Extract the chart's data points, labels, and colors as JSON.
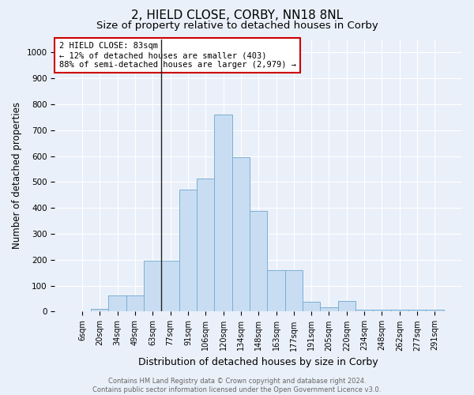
{
  "title": "2, HIELD CLOSE, CORBY, NN18 8NL",
  "subtitle": "Size of property relative to detached houses in Corby",
  "xlabel": "Distribution of detached houses by size in Corby",
  "ylabel": "Number of detached properties",
  "categories": [
    "6sqm",
    "20sqm",
    "34sqm",
    "49sqm",
    "63sqm",
    "77sqm",
    "91sqm",
    "106sqm",
    "120sqm",
    "134sqm",
    "148sqm",
    "163sqm",
    "177sqm",
    "191sqm",
    "205sqm",
    "220sqm",
    "234sqm",
    "248sqm",
    "262sqm",
    "277sqm",
    "291sqm"
  ],
  "values": [
    0,
    10,
    62,
    62,
    195,
    195,
    470,
    515,
    760,
    595,
    390,
    160,
    160,
    37,
    18,
    42,
    8,
    8,
    8,
    8,
    8
  ],
  "bar_color": "#c9ddf2",
  "bar_edge_color": "#7aafd4",
  "ylim": [
    0,
    1050
  ],
  "yticks": [
    0,
    100,
    200,
    300,
    400,
    500,
    600,
    700,
    800,
    900,
    1000
  ],
  "annotation_line1": "2 HIELD CLOSE: 83sqm",
  "annotation_line2": "← 12% of detached houses are smaller (403)",
  "annotation_line3": "88% of semi-detached houses are larger (2,979) →",
  "annotation_box_color": "#ffffff",
  "annotation_box_edge_color": "#cc0000",
  "vline_x": 4.5,
  "footer_text": "Contains HM Land Registry data © Crown copyright and database right 2024.\nContains public sector information licensed under the Open Government Licence v3.0.",
  "background_color": "#eaf0f9",
  "plot_background_color": "#eaf0f9",
  "grid_color": "#ffffff",
  "title_fontsize": 11,
  "subtitle_fontsize": 9.5,
  "tick_fontsize": 7,
  "ylabel_fontsize": 8.5,
  "xlabel_fontsize": 9,
  "footer_fontsize": 6,
  "annotation_fontsize": 7.5
}
